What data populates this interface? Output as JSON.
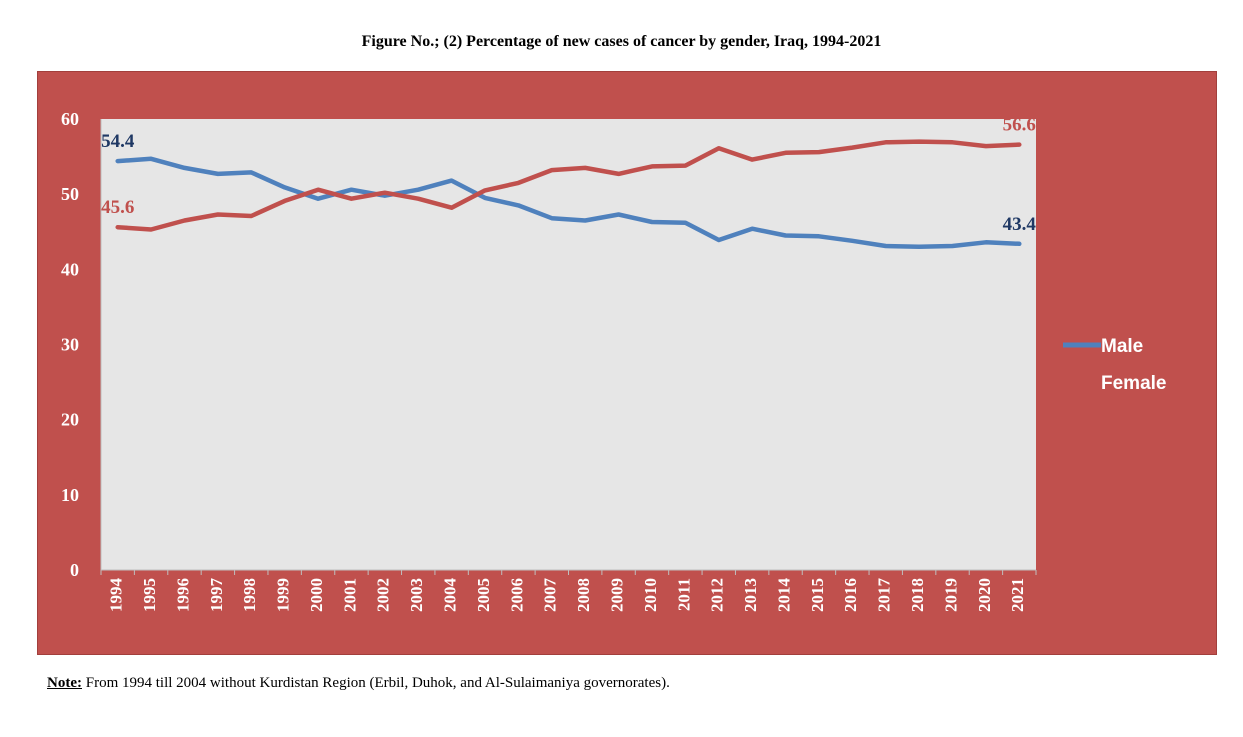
{
  "figure_title": "Figure No.; (2) Percentage of new cases of cancer by gender, Iraq, 1994-2021",
  "note": {
    "label": "Note:",
    "text": " From 1994 till 2004 without Kurdistan Region (Erbil, Duhok, and Al-Sulaimaniya governorates)."
  },
  "colors": {
    "outer_background": "#c0504d",
    "plot_background": "#e6e6e6",
    "male": "#4f81bd",
    "female": "#c0504d",
    "male_label": "#1f3864",
    "female_label": "#c0504d"
  },
  "chart_data": {
    "type": "line",
    "title": "Figure No.; (2) Percentage of new cases of cancer by gender, Iraq, 1994-2021",
    "xlabel": "",
    "ylabel": "",
    "ylim": [
      0,
      60
    ],
    "yticks": [
      "0",
      "10",
      "20",
      "30",
      "40",
      "50",
      "60"
    ],
    "grid": false,
    "legend_position": "right",
    "categories": [
      "1994",
      "1995",
      "1996",
      "1997",
      "1998",
      "1999",
      "2000",
      "2001",
      "2002",
      "2003",
      "2004",
      "2005",
      "2006",
      "2007",
      "2008",
      "2009",
      "2010",
      "2011",
      "2012",
      "2013",
      "2014",
      "2015",
      "2016",
      "2017",
      "2018",
      "2019",
      "2020",
      "2021"
    ],
    "series": [
      {
        "name": "Male",
        "values": [
          54.4,
          54.7,
          53.5,
          52.7,
          52.9,
          50.9,
          49.4,
          50.6,
          49.8,
          50.6,
          51.8,
          49.5,
          48.5,
          46.8,
          46.5,
          47.3,
          46.3,
          46.2,
          43.9,
          45.4,
          44.5,
          44.4,
          43.8,
          43.1,
          43.0,
          43.1,
          43.6,
          43.4
        ],
        "labels": [
          {
            "index": 0,
            "text": "54.4"
          },
          {
            "index": 27,
            "text": "43.4"
          }
        ]
      },
      {
        "name": "Female",
        "values": [
          45.6,
          45.3,
          46.5,
          47.3,
          47.1,
          49.1,
          50.6,
          49.4,
          50.2,
          49.4,
          48.2,
          50.5,
          51.5,
          53.2,
          53.5,
          52.7,
          53.7,
          53.8,
          56.1,
          54.6,
          55.5,
          55.6,
          56.2,
          56.9,
          57.0,
          56.9,
          56.4,
          56.6
        ],
        "labels": [
          {
            "index": 0,
            "text": "45.6"
          },
          {
            "index": 27,
            "text": "56.6"
          }
        ]
      }
    ]
  }
}
